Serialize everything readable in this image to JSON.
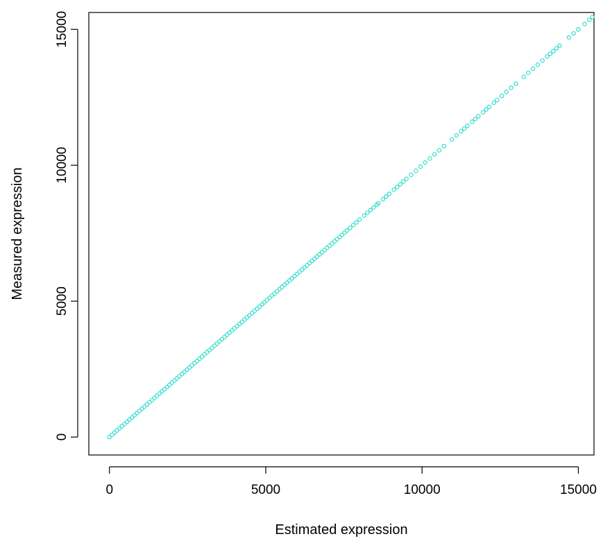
{
  "chart_data": {
    "type": "scatter",
    "title": "",
    "xlabel": "Estimated expression",
    "ylabel": "Measured expression",
    "xlim": [
      -660,
      15500
    ],
    "ylim": [
      -660,
      15620
    ],
    "x_ticks": [
      0,
      5000,
      10000,
      15000
    ],
    "y_ticks": [
      0,
      5000,
      10000,
      15000
    ],
    "x_tick_labels": [
      "0",
      "5000",
      "10000",
      "15000"
    ],
    "y_tick_labels": [
      "0",
      "5000",
      "10000",
      "15000"
    ],
    "grid": false,
    "marker": "open-circle",
    "point_color": "#40E0D0",
    "series": [
      {
        "note_relationship": "y equals x",
        "points_x": [
          0,
          80,
          160,
          240,
          320,
          400,
          480,
          560,
          640,
          720,
          800,
          880,
          960,
          1040,
          1120,
          1200,
          1280,
          1360,
          1440,
          1520,
          1600,
          1680,
          1760,
          1840,
          1920,
          2000,
          2080,
          2160,
          2240,
          2320,
          2400,
          2480,
          2560,
          2640,
          2720,
          2800,
          2880,
          2960,
          3040,
          3120,
          3200,
          3280,
          3360,
          3440,
          3520,
          3600,
          3680,
          3760,
          3840,
          3920,
          4000,
          4080,
          4160,
          4240,
          4320,
          4400,
          4480,
          4560,
          4640,
          4720,
          4800,
          4880,
          4960,
          5040,
          5120,
          5200,
          5280,
          5360,
          5440,
          5520,
          5600,
          5680,
          5760,
          5840,
          5920,
          6000,
          6080,
          6160,
          6240,
          6320,
          6400,
          6480,
          6560,
          6640,
          6720,
          6800,
          6880,
          6960,
          7040,
          7120,
          7200,
          7280,
          7360,
          7440,
          7520,
          7600,
          7700,
          7800,
          7900,
          8000,
          8150,
          8250,
          8350,
          8450,
          8550,
          8600,
          8750,
          8850,
          8950,
          9100,
          9200,
          9300,
          9400,
          9500,
          9650,
          9800,
          9950,
          10100,
          10250,
          10400,
          10550,
          10700,
          10950,
          11100,
          11250,
          11350,
          11450,
          11600,
          11700,
          11800,
          11950,
          12050,
          12150,
          12300,
          12400,
          12550,
          12700,
          12850,
          13000,
          13250,
          13400,
          13550,
          13700,
          13850,
          14000,
          14100,
          14200,
          14300,
          14400,
          14700,
          14850,
          15000,
          15200,
          15350,
          15450
        ],
        "points_y": [
          0,
          80,
          160,
          240,
          320,
          400,
          480,
          560,
          640,
          720,
          800,
          880,
          960,
          1040,
          1120,
          1200,
          1280,
          1360,
          1440,
          1520,
          1600,
          1680,
          1760,
          1840,
          1920,
          2000,
          2080,
          2160,
          2240,
          2320,
          2400,
          2480,
          2560,
          2640,
          2720,
          2800,
          2880,
          2960,
          3040,
          3120,
          3200,
          3280,
          3360,
          3440,
          3520,
          3600,
          3680,
          3760,
          3840,
          3920,
          4000,
          4080,
          4160,
          4240,
          4320,
          4400,
          4480,
          4560,
          4640,
          4720,
          4800,
          4880,
          4960,
          5040,
          5120,
          5200,
          5280,
          5360,
          5440,
          5520,
          5600,
          5680,
          5760,
          5840,
          5920,
          6000,
          6080,
          6160,
          6240,
          6320,
          6400,
          6480,
          6560,
          6640,
          6720,
          6800,
          6880,
          6960,
          7040,
          7120,
          7200,
          7280,
          7360,
          7440,
          7520,
          7600,
          7700,
          7800,
          7900,
          8000,
          8150,
          8250,
          8350,
          8450,
          8550,
          8600,
          8750,
          8850,
          8950,
          9100,
          9200,
          9300,
          9400,
          9500,
          9650,
          9800,
          9950,
          10100,
          10250,
          10400,
          10550,
          10700,
          10950,
          11100,
          11250,
          11350,
          11450,
          11600,
          11700,
          11800,
          11950,
          12050,
          12150,
          12300,
          12400,
          12550,
          12700,
          12850,
          13000,
          13250,
          13400,
          13550,
          13700,
          13850,
          14000,
          14100,
          14200,
          14300,
          14400,
          14700,
          14850,
          15000,
          15200,
          15350,
          15450
        ]
      }
    ]
  }
}
